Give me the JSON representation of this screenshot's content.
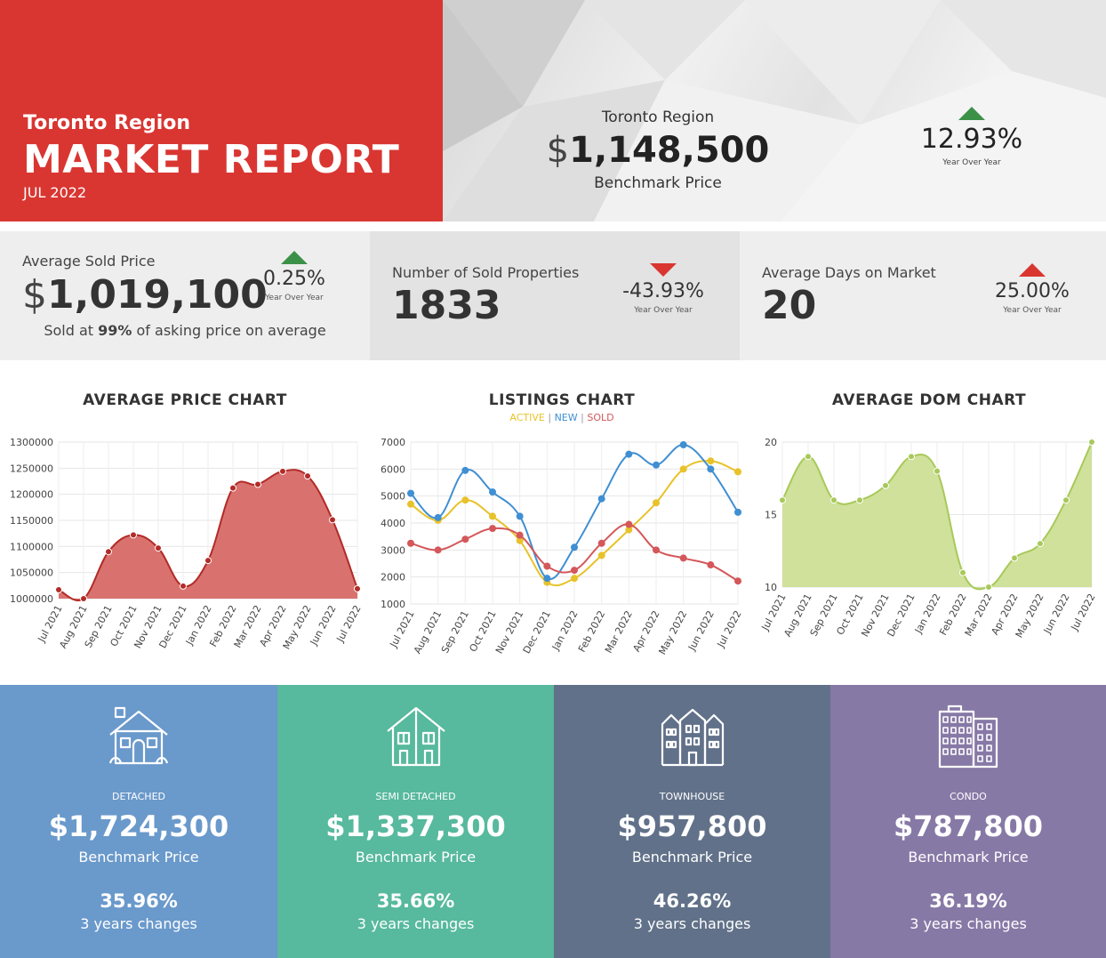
{
  "header": {
    "region": "Toronto Region",
    "title": "MARKET REPORT",
    "date": "JUL 2022",
    "benchmark_label": "Toronto Region",
    "benchmark_currency": "$",
    "benchmark_value": "1,148,500",
    "benchmark_sub": "Benchmark Price",
    "yoy_pct": "12.93%",
    "yoy_caption": "Year Over Year",
    "yoy_direction": "up"
  },
  "stats": {
    "avg_price": {
      "label": "Average Sold Price",
      "currency": "$",
      "value": "1,019,100",
      "yoy": "0.25%",
      "yoy_caption": "Year Over Year",
      "direction": "up",
      "note_prefix": "Sold at ",
      "note_bold": "99%",
      "note_suffix": " of asking price on average"
    },
    "sold": {
      "label": "Number of Sold Properties",
      "value": "1833",
      "yoy": "-43.93%",
      "yoy_caption": "Year Over Year",
      "direction": "down"
    },
    "dom": {
      "label": "Average Days on Market",
      "value": "20",
      "yoy": "25.00%",
      "yoy_caption": "Year Over Year",
      "direction": "up"
    }
  },
  "colors": {
    "header_red": "#d93632",
    "up_green": "#3c9148",
    "price_line": "#b22b27",
    "price_fill": "#d9726f",
    "active": "#e8c22a",
    "new": "#3f8fd2",
    "sold": "#d4575a",
    "dom_line": "#a8c95a",
    "dom_fill": "#cfe19a",
    "detached": "#6a99cb",
    "semi": "#57b99d",
    "townhouse": "#617189",
    "condo": "#8779a6"
  },
  "legend": {
    "active": "ACTIVE",
    "new": "NEW",
    "sold": "SOLD",
    "sep": "|"
  },
  "chart_data": [
    {
      "type": "area",
      "title": "AVERAGE PRICE CHART",
      "categories": [
        "Jul 2021",
        "Aug 2021",
        "Sep 2021",
        "Oct 2021",
        "Nov 2021",
        "Dec 2021",
        "Jan 2022",
        "Feb 2022",
        "Mar 2022",
        "Apr 2022",
        "May 2022",
        "Jun 2022",
        "Jul 2022"
      ],
      "series": [
        {
          "values": [
            1017000,
            1000000,
            1090000,
            1122000,
            1097000,
            1024000,
            1073000,
            1212000,
            1219000,
            1244000,
            1235000,
            1151000,
            1019000
          ]
        }
      ],
      "ylim": [
        1000000,
        1300000
      ],
      "yticks": [
        "1000000",
        "1050000",
        "1100000",
        "1150000",
        "1200000",
        "1250000",
        "1300000"
      ],
      "grid": true
    },
    {
      "type": "line",
      "title": "LISTINGS CHART",
      "categories": [
        "Jul 2021",
        "Aug 2021",
        "Sep 2021",
        "Oct 2021",
        "Nov 2021",
        "Dec 2021",
        "Jan 2022",
        "Feb 2022",
        "Mar 2022",
        "Apr 2022",
        "May 2022",
        "Jun 2022",
        "Jul 2022"
      ],
      "series": [
        {
          "name": "ACTIVE",
          "values": [
            4700,
            4100,
            4850,
            4250,
            3350,
            1800,
            1950,
            2800,
            3750,
            4750,
            6000,
            6300,
            5900
          ]
        },
        {
          "name": "NEW",
          "values": [
            5100,
            4200,
            5950,
            5150,
            4250,
            1950,
            3100,
            4900,
            6550,
            6150,
            6900,
            6000,
            4400
          ]
        },
        {
          "name": "SOLD",
          "values": [
            3250,
            3000,
            3400,
            3800,
            3550,
            2400,
            2250,
            3250,
            3950,
            3000,
            2700,
            2450,
            1850
          ]
        }
      ],
      "ylim": [
        1000,
        7000
      ],
      "yticks": [
        "1000",
        "2000",
        "3000",
        "4000",
        "5000",
        "6000",
        "7000"
      ],
      "grid": true
    },
    {
      "type": "area",
      "title": "AVERAGE DOM CHART",
      "categories": [
        "Jul 2021",
        "Aug 2021",
        "Sep 2021",
        "Oct 2021",
        "Nov 2021",
        "Dec 2021",
        "Jan 2022",
        "Feb 2022",
        "Mar 2022",
        "Apr 2022",
        "May 2022",
        "Jun 2022",
        "Jul 2022"
      ],
      "series": [
        {
          "values": [
            16,
            19,
            16,
            16,
            17,
            19,
            18,
            11,
            10,
            12,
            13,
            16,
            20
          ]
        }
      ],
      "ylim": [
        10,
        20
      ],
      "yticks": [
        "10",
        "15",
        "20"
      ],
      "grid": true
    }
  ],
  "cards": [
    {
      "type": "DETACHED",
      "price": "$1,724,300",
      "sub": "Benchmark Price",
      "pct": "35.96%",
      "chg": "3 years changes"
    },
    {
      "type": "SEMI DETACHED",
      "price": "$1,337,300",
      "sub": "Benchmark Price",
      "pct": "35.66%",
      "chg": "3 years changes"
    },
    {
      "type": "TOWNHOUSE",
      "price": "$957,800",
      "sub": "Benchmark Price",
      "pct": "46.26%",
      "chg": "3 years changes"
    },
    {
      "type": "CONDO",
      "price": "$787,800",
      "sub": "Benchmark Price",
      "pct": "36.19%",
      "chg": "3 years changes"
    }
  ]
}
